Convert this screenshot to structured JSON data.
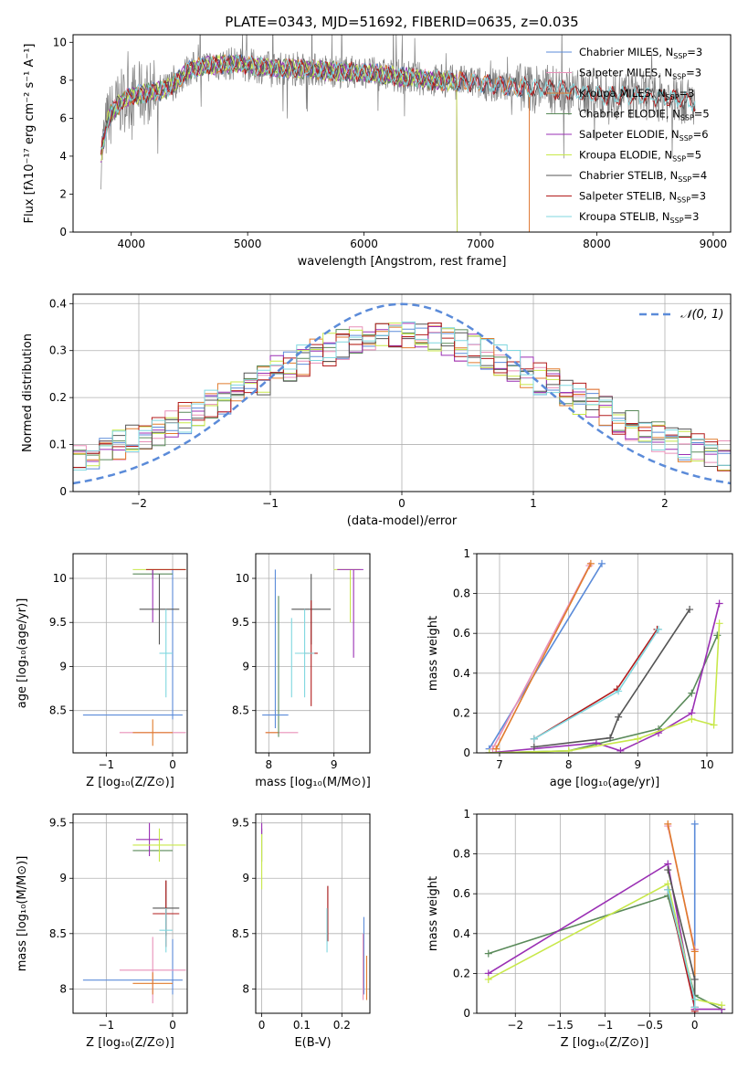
{
  "figure": {
    "title": "PLATE=0343, MJD=51692, FIBERID=0635, z=0.035"
  },
  "colors": {
    "Chabrier MILES": "#5b8bd9",
    "Salpeter MILES": "#e88fb8",
    "Kroupa MILES": "#e07b2c",
    "Chabrier ELODIE": "#5a8a5a",
    "Salpeter ELODIE": "#9a2fb4",
    "Kroupa ELODIE": "#c8e84a",
    "Chabrier STELIB": "#555555",
    "Salpeter STELIB": "#b21b1b",
    "Kroupa STELIB": "#7fd7df",
    "data": "#808080",
    "normal": "#5b8bd9"
  },
  "chart_data": [
    {
      "id": "spectrum",
      "type": "line",
      "title": "PLATE=0343, MJD=51692, FIBERID=0635, z=0.035",
      "xlabel": "wavelength [Angstrom, rest frame]",
      "ylabel": "Flux [fλ10⁻¹⁷ erg cm⁻² s⁻¹ A⁻¹]",
      "xlim": [
        3500,
        9150
      ],
      "ylim": [
        0,
        10.4
      ],
      "xticks": [
        4000,
        5000,
        6000,
        7000,
        8000,
        9000
      ],
      "yticks": [
        0,
        2,
        4,
        6,
        8,
        10
      ],
      "legend_position": "top-right",
      "legend": [
        "Chabrier MILES, N_SSP=3",
        "Salpeter MILES, N_SSP=3",
        "Kroupa MILES, N_SSP=3",
        "Chabrier ELODIE, N_SSP=5",
        "Salpeter ELODIE, N_SSP=6",
        "Kroupa ELODIE, N_SSP=5",
        "Chabrier STELIB, N_SSP=4",
        "Salpeter STELIB, N_SSP=3",
        "Kroupa STELIB, N_SSP=3"
      ],
      "continuum": {
        "x": [
          3740,
          3800,
          3900,
          4000,
          4100,
          4200,
          4300,
          4400,
          4500,
          4700,
          4900,
          5100,
          5300,
          5500,
          5700,
          6000,
          6300,
          6600,
          6900,
          7200,
          7500,
          7800,
          8100,
          8400,
          8700,
          8850
        ],
        "y": [
          4.0,
          6.0,
          6.8,
          7.2,
          7.3,
          7.4,
          7.5,
          8.0,
          8.6,
          8.8,
          8.9,
          8.7,
          8.6,
          8.6,
          8.5,
          8.4,
          8.2,
          8.0,
          7.9,
          7.7,
          7.6,
          7.4,
          7.2,
          7.2,
          7.0,
          6.8
        ]
      }
    },
    {
      "id": "residuals",
      "type": "step",
      "xlabel": "(data-model)/error",
      "ylabel": "Normed distribution",
      "xlim": [
        -2.5,
        2.5
      ],
      "ylim": [
        0,
        0.42
      ],
      "xticks": [
        -2,
        -1,
        0,
        1,
        2
      ],
      "yticks": [
        0.0,
        0.1,
        0.2,
        0.3,
        0.4
      ],
      "legend_position": "top-right",
      "normal_label": "𝒩(0, 1)",
      "bin_width": 0.1,
      "bins_left": -2.5
    },
    {
      "id": "age-vs-Z",
      "type": "errorbar",
      "xlabel": "Z [log₁₀(Z/Z⊙)]",
      "ylabel": "age [log₁₀(age/yr)]",
      "xlim": [
        -1.5,
        0.22
      ],
      "ylim": [
        8.02,
        10.28
      ],
      "xticks": [
        -1,
        0
      ],
      "yticks": [
        8.5,
        9.0,
        9.5,
        10.0
      ],
      "series": [
        {
          "name": "Chabrier MILES",
          "x": -0.6,
          "xerr": 0.75,
          "y": 8.45,
          "yerr": 0.0,
          "xmain": 0.0,
          "ymain": 9.25,
          "ymainerr": 0.85
        },
        {
          "name": "Salpeter MILES",
          "x": -0.3,
          "xerr": 0.5,
          "y": 8.25,
          "yerr": 0.0
        },
        {
          "name": "Kroupa MILES",
          "x": -0.3,
          "xerr": 0.3,
          "y": 8.25,
          "yerr": 0.15
        },
        {
          "name": "Chabrier ELODIE",
          "x": -0.3,
          "xerr": 0.3,
          "y": 10.05,
          "yerr": 0.05
        },
        {
          "name": "Salpeter ELODIE",
          "x": -0.3,
          "xerr": 0.0,
          "y": 9.8,
          "yerr": 0.3
        },
        {
          "name": "Kroupa ELODIE",
          "x": -0.2,
          "xerr": 0.4,
          "y": 10.1,
          "yerr": 0.0
        },
        {
          "name": "Chabrier STELIB",
          "x": -0.2,
          "xerr": 0.3,
          "y": 9.65,
          "yerr": 0.4
        },
        {
          "name": "Salpeter STELIB",
          "x": -0.1,
          "xerr": 0.3,
          "y": 10.1,
          "yerr": 0.0
        },
        {
          "name": "Kroupa STELIB",
          "x": -0.1,
          "xerr": 0.1,
          "y": 9.15,
          "yerr": 0.5
        }
      ]
    },
    {
      "id": "age-vs-mass",
      "type": "errorbar",
      "xlabel": "mass [log₁₀(M/M⊙)]",
      "ylabel": "",
      "xlim": [
        7.8,
        9.55
      ],
      "ylim": [
        8.02,
        10.28
      ],
      "xticks": [
        8,
        9
      ],
      "yticks": [
        8.5,
        9.0,
        9.5,
        10.0
      ],
      "series": [
        {
          "name": "Chabrier MILES",
          "x": 8.1,
          "xerr": 0.0,
          "y": 9.2,
          "yerr": 0.9
        },
        {
          "name": "Salpeter MILES",
          "x": 8.2,
          "xerr": 0.25,
          "y": 8.25,
          "yerr": 0.0
        },
        {
          "name": "Kroupa MILES",
          "x": 8.05,
          "xerr": 0.1,
          "y": 8.25,
          "yerr": 0.0
        },
        {
          "name": "Chabrier ELODIE",
          "x": 8.15,
          "xerr": 0.0,
          "y": 9.0,
          "yerr": 0.8
        },
        {
          "name": "Salpeter ELODIE",
          "x": 9.3,
          "xerr": 0.0,
          "y": 9.6,
          "yerr": 0.5
        },
        {
          "name": "Kroupa ELODIE",
          "x": 9.2,
          "xerr": 0.2,
          "y": 10.1,
          "yerr": 0.0
        },
        {
          "name": "Chabrier STELIB",
          "x": 8.65,
          "xerr": 0.3,
          "y": 9.65,
          "yerr": 0.4
        },
        {
          "name": "Salpeter STELIB",
          "x": 8.65,
          "xerr": 0.1,
          "y": 9.15,
          "yerr": 0.6
        },
        {
          "name": "Kroupa STELIB",
          "x": 8.55,
          "xerr": 0.15,
          "y": 9.15,
          "yerr": 0.5
        },
        {
          "name": "Kroupa STELIB",
          "x": 8.35,
          "xerr": 0.0,
          "y": 9.1,
          "yerr": 0.45
        },
        {
          "name": "Kroupa ELODIE",
          "x": 9.25,
          "xerr": 0.0,
          "y": 9.8,
          "yerr": 0.3
        },
        {
          "name": "Chabrier MILES",
          "x": 8.1,
          "xerr": 0.2,
          "y": 8.45,
          "yerr": 0.0
        },
        {
          "name": "Salpeter ELODIE",
          "x": 9.25,
          "xerr": 0.2,
          "y": 10.1,
          "yerr": 0.0
        }
      ]
    },
    {
      "id": "cumulative-age",
      "type": "line",
      "xlabel": "age [log₁₀(age/yr)]",
      "ylabel": "mass weight",
      "xlim": [
        6.67,
        10.37
      ],
      "ylim": [
        0,
        1.0
      ],
      "xticks": [
        7,
        8,
        9,
        10
      ],
      "yticks": [
        0.0,
        0.2,
        0.4,
        0.6,
        0.8,
        1.0
      ],
      "series": [
        {
          "name": "Chabrier MILES",
          "x": [
            6.85,
            8.48
          ],
          "y": [
            0.02,
            0.95
          ]
        },
        {
          "name": "Salpeter MILES",
          "x": [
            6.9,
            8.3
          ],
          "y": [
            0.02,
            0.94
          ]
        },
        {
          "name": "Kroupa MILES",
          "x": [
            6.95,
            8.32
          ],
          "y": [
            0.02,
            0.95
          ]
        },
        {
          "name": "Chabrier ELODIE",
          "x": [
            6.85,
            8.0,
            9.3,
            9.78,
            10.15
          ],
          "y": [
            0.0,
            0.01,
            0.12,
            0.3,
            0.59
          ]
        },
        {
          "name": "Salpeter ELODIE",
          "x": [
            6.85,
            8.4,
            8.75,
            9.3,
            9.78,
            10.18
          ],
          "y": [
            0.0,
            0.05,
            0.01,
            0.1,
            0.2,
            0.75
          ]
        },
        {
          "name": "Kroupa ELODIE",
          "x": [
            6.85,
            8.0,
            9.0,
            9.78,
            10.1,
            10.18
          ],
          "y": [
            0.0,
            0.01,
            0.07,
            0.17,
            0.14,
            0.65
          ]
        },
        {
          "name": "Chabrier STELIB",
          "x": [
            7.5,
            8.6,
            8.72,
            9.75
          ],
          "y": [
            0.03,
            0.075,
            0.18,
            0.72
          ]
        },
        {
          "name": "Salpeter STELIB",
          "x": [
            7.5,
            8.7,
            9.28
          ],
          "y": [
            0.07,
            0.32,
            0.62
          ]
        },
        {
          "name": "Kroupa STELIB",
          "x": [
            7.5,
            8.72,
            9.3
          ],
          "y": [
            0.07,
            0.31,
            0.62
          ]
        }
      ]
    },
    {
      "id": "mass-vs-Z",
      "type": "errorbar",
      "xlabel": "Z [log₁₀(Z/Z⊙)]",
      "ylabel": "mass [log₁₀(M/M⊙)]",
      "xlim": [
        -1.5,
        0.22
      ],
      "ylim": [
        7.78,
        9.58
      ],
      "xticks": [
        -1,
        0
      ],
      "yticks": [
        8.0,
        8.5,
        9.0,
        9.5
      ],
      "series": [
        {
          "name": "Chabrier MILES",
          "x": -0.6,
          "xerr": 0.75,
          "y": 8.08,
          "yerr": 0.0
        },
        {
          "name": "Chabrier MILES",
          "x": 0.0,
          "xerr": 0.0,
          "y": 8.2,
          "yerr": 0.25
        },
        {
          "name": "Salpeter MILES",
          "x": -0.3,
          "xerr": 0.5,
          "y": 8.17,
          "yerr": 0.0
        },
        {
          "name": "Salpeter MILES",
          "x": -0.3,
          "xerr": 0.0,
          "y": 8.17,
          "yerr": 0.3
        },
        {
          "name": "Kroupa MILES",
          "x": -0.3,
          "xerr": 0.3,
          "y": 8.05,
          "yerr": 0.1
        },
        {
          "name": "Chabrier ELODIE",
          "x": -0.3,
          "xerr": 0.3,
          "y": 9.25,
          "yerr": 0.0
        },
        {
          "name": "Salpeter ELODIE",
          "x": -0.35,
          "xerr": 0.2,
          "y": 9.35,
          "yerr": 0.15
        },
        {
          "name": "Kroupa ELODIE",
          "x": -0.2,
          "xerr": 0.4,
          "y": 9.3,
          "yerr": 0.15
        },
        {
          "name": "Chabrier STELIB",
          "x": -0.1,
          "xerr": 0.2,
          "y": 8.73,
          "yerr": 0.25
        },
        {
          "name": "Salpeter STELIB",
          "x": -0.1,
          "xerr": 0.2,
          "y": 8.68,
          "yerr": 0.3
        },
        {
          "name": "Kroupa STELIB",
          "x": -0.1,
          "xerr": 0.1,
          "y": 8.53,
          "yerr": 0.2
        }
      ]
    },
    {
      "id": "mass-vs-EBV",
      "type": "errorbar",
      "xlabel": "E(B-V)",
      "ylabel": "",
      "xlim": [
        -0.015,
        0.27
      ],
      "ylim": [
        7.78,
        9.58
      ],
      "xticks": [
        0.0,
        0.1,
        0.2
      ],
      "yticks": [
        8.0,
        8.5,
        9.0,
        9.5
      ],
      "series": [
        {
          "name": "Chabrier ELODIE",
          "x": 0.0,
          "xerr": 0.0,
          "y": 9.3,
          "yerr": 0.15
        },
        {
          "name": "Kroupa ELODIE",
          "x": 0.0,
          "xerr": 0.0,
          "y": 9.15,
          "yerr": 0.25
        },
        {
          "name": "Salpeter ELODIE",
          "x": 0.0,
          "xerr": 0.0,
          "y": 9.45,
          "yerr": 0.05
        },
        {
          "name": "Chabrier STELIB",
          "x": 0.165,
          "xerr": 0.0,
          "y": 8.73,
          "yerr": 0.2
        },
        {
          "name": "Salpeter STELIB",
          "x": 0.165,
          "xerr": 0.0,
          "y": 8.68,
          "yerr": 0.25
        },
        {
          "name": "Kroupa STELIB",
          "x": 0.163,
          "xerr": 0.0,
          "y": 8.53,
          "yerr": 0.2
        },
        {
          "name": "Chabrier MILES",
          "x": 0.255,
          "xerr": 0.0,
          "y": 8.3,
          "yerr": 0.35
        },
        {
          "name": "Salpeter MILES",
          "x": 0.253,
          "xerr": 0.0,
          "y": 8.2,
          "yerr": 0.3
        },
        {
          "name": "Kroupa MILES",
          "x": 0.262,
          "xerr": 0.0,
          "y": 8.1,
          "yerr": 0.2
        }
      ]
    },
    {
      "id": "cumulative-Z",
      "type": "line",
      "xlabel": "Z [log₁₀(Z/Z⊙)]",
      "ylabel": "mass weight",
      "xlim": [
        -2.43,
        0.42
      ],
      "ylim": [
        0,
        1.0
      ],
      "xticks": [
        -2.0,
        -1.5,
        -1.0,
        -0.5,
        0.0
      ],
      "yticks": [
        0.0,
        0.2,
        0.4,
        0.6,
        0.8,
        1.0
      ],
      "series": [
        {
          "name": "Chabrier MILES",
          "x": [
            0.0,
            0.0,
            0.0
          ],
          "y": [
            0.02,
            0.32,
            0.95
          ]
        },
        {
          "name": "Salpeter MILES",
          "x": [
            -0.3,
            0.0,
            0.0
          ],
          "y": [
            0.94,
            0.32,
            0.02
          ]
        },
        {
          "name": "Kroupa MILES",
          "x": [
            -0.3,
            0.0,
            0.0
          ],
          "y": [
            0.95,
            0.31,
            0.02
          ]
        },
        {
          "name": "Chabrier ELODIE",
          "x": [
            -2.3,
            -0.3,
            0.0,
            0.3
          ],
          "y": [
            0.3,
            0.59,
            0.09,
            0.02
          ]
        },
        {
          "name": "Salpeter ELODIE",
          "x": [
            -2.3,
            -0.3,
            0.0,
            0.3
          ],
          "y": [
            0.2,
            0.75,
            0.02,
            0.02
          ]
        },
        {
          "name": "Kroupa ELODIE",
          "x": [
            -2.3,
            -0.3,
            0.0,
            0.3
          ],
          "y": [
            0.17,
            0.65,
            0.07,
            0.04
          ]
        },
        {
          "name": "Chabrier STELIB",
          "x": [
            -0.3,
            0.0,
            0.0
          ],
          "y": [
            0.72,
            0.17,
            0.03
          ]
        },
        {
          "name": "Salpeter STELIB",
          "x": [
            -0.3,
            0.0,
            0.0
          ],
          "y": [
            0.62,
            0.03,
            0.01
          ]
        },
        {
          "name": "Kroupa STELIB",
          "x": [
            -0.3,
            0.0,
            0.0
          ],
          "y": [
            0.62,
            0.07,
            0.03
          ]
        }
      ]
    }
  ]
}
